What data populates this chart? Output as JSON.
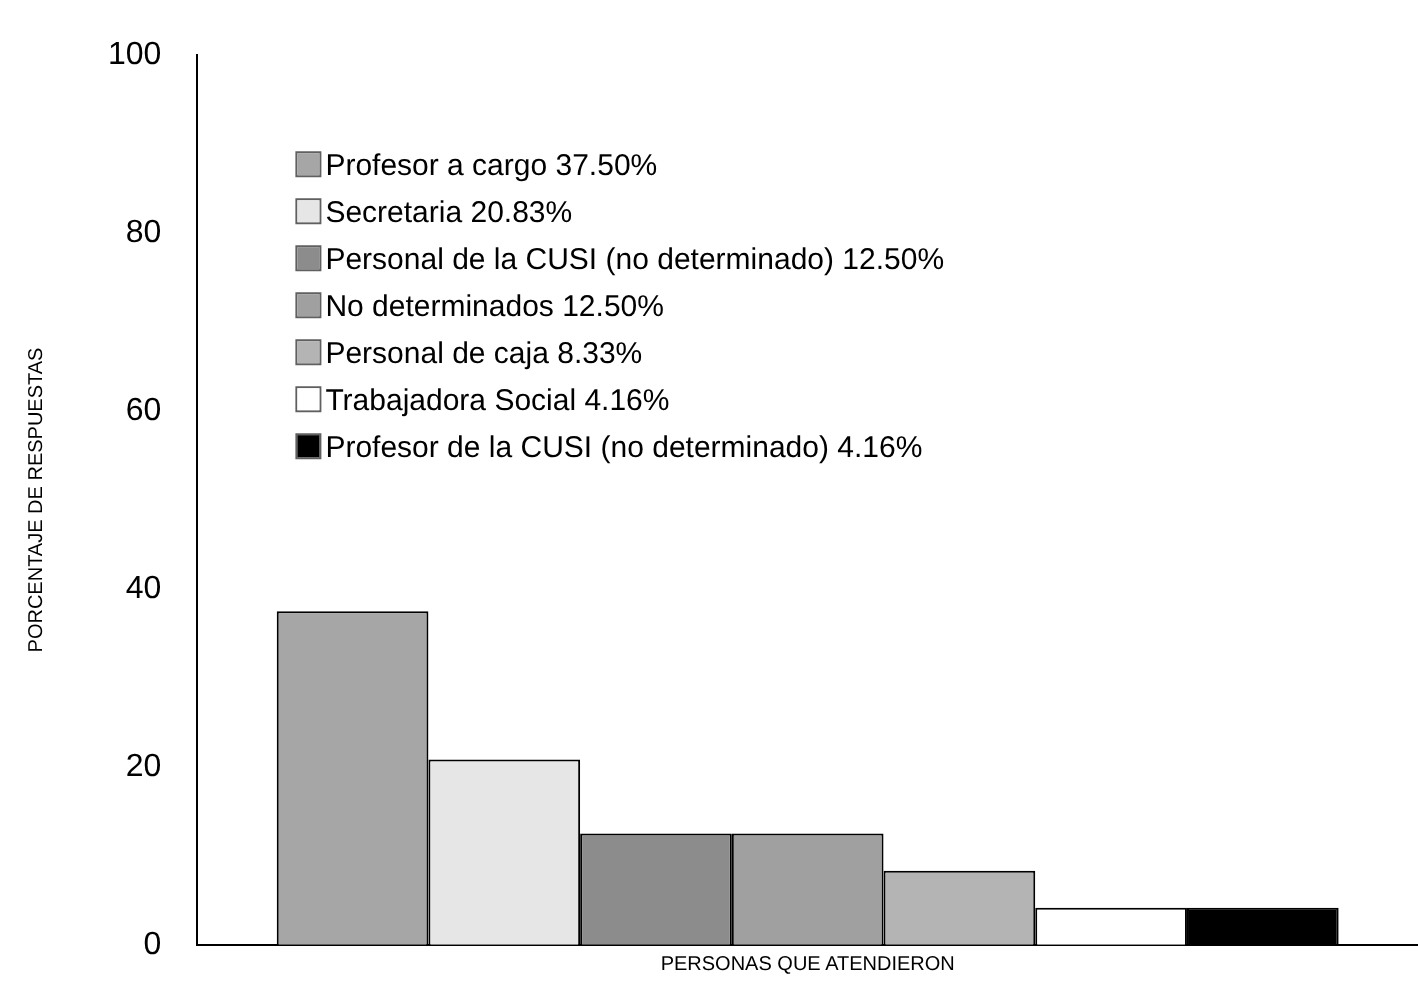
{
  "chart_data": {
    "type": "bar",
    "xlabel": "PERSONAS QUE ATENDIERON",
    "ylabel": "PORCENTAJE DE RESPUESTAS",
    "categories": [
      null
    ],
    "ylim": [
      0,
      100
    ],
    "yticks": [
      0,
      20,
      40,
      60,
      80,
      100
    ],
    "grid": false,
    "legend": "top left",
    "series": [
      {
        "name": "Profesor a cargo 37.50%",
        "color": "#a6a6a6",
        "values": [
          37.5
        ]
      },
      {
        "name": "Secretaria 20.83%",
        "color": "#e6e6e6",
        "values": [
          20.83
        ]
      },
      {
        "name": "Personal de la CUSI (no determinado) 12.50%",
        "color": "#8c8c8c",
        "values": [
          12.5
        ]
      },
      {
        "name": "No determinados 12.50%",
        "color": "#a0a0a0",
        "values": [
          12.5
        ]
      },
      {
        "name": "Personal de caja 8.33%",
        "color": "#b4b4b4",
        "values": [
          8.33
        ]
      },
      {
        "name": "Trabajadora Social 4.16%",
        "color": "#ffffff",
        "values": [
          4.16
        ]
      },
      {
        "name": "Profesor de la CUSI (no determinado) 4.16%",
        "color": "#000000",
        "values": [
          4.16
        ]
      }
    ]
  }
}
